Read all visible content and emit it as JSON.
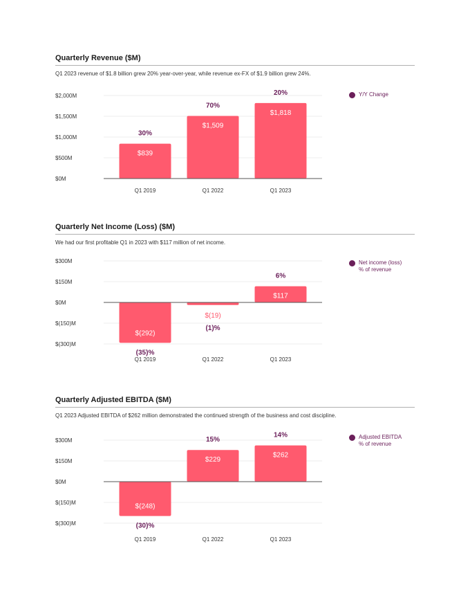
{
  "colors": {
    "bar": "#ff5a6e",
    "pct": "#6b1f5a",
    "grid": "#e6e6e6",
    "zero": "#555555"
  },
  "chart_data": [
    {
      "type": "bar",
      "title": "Quarterly Revenue ($M)",
      "subtitle": "Q1 2023 revenue of $1.8 billion grew 20% year-over-year, while revenue ex-FX of $1.9 billion grew 24%.",
      "categories": [
        "Q1 2019",
        "Q1 2022",
        "Q1 2023"
      ],
      "values": [
        839,
        1509,
        1818
      ],
      "bar_labels": [
        "$839",
        "$1,509",
        "$1,818"
      ],
      "pct_labels": [
        "30%",
        "70%",
        "20%"
      ],
      "yticks": [
        0,
        500,
        1000,
        1500,
        2000
      ],
      "ytick_labels": [
        "$0M",
        "$500M",
        "$1,000M",
        "$1,500M",
        "$2,000M"
      ],
      "ylim": [
        0,
        2000
      ],
      "legend": "Y/Y Change",
      "legend_position": "top-right"
    },
    {
      "type": "bar",
      "title": "Quarterly Net Income (Loss) ($M)",
      "subtitle": "We had our first profitable Q1 in 2023 with $117 million of net income.",
      "categories": [
        "Q1 2019",
        "Q1 2022",
        "Q1 2023"
      ],
      "values": [
        -292,
        -19,
        117
      ],
      "bar_labels": [
        "$(292)",
        "$(19)",
        "$117"
      ],
      "pct_labels": [
        "(35)%",
        "(1)%",
        "6%"
      ],
      "yticks": [
        -300,
        -150,
        0,
        150,
        300
      ],
      "ytick_labels": [
        "$(300)M",
        "$(150)M",
        "$0M",
        "$150M",
        "$300M"
      ],
      "ylim": [
        -300,
        300
      ],
      "legend": "Net income (loss)\n% of revenue",
      "legend_position": "top-right"
    },
    {
      "type": "bar",
      "title": "Quarterly Adjusted EBITDA ($M)",
      "subtitle": "Q1 2023 Adjusted EBITDA of $262 million demonstrated the continued strength of the business and cost discipline.",
      "categories": [
        "Q1 2019",
        "Q1 2022",
        "Q1 2023"
      ],
      "values": [
        -248,
        229,
        262
      ],
      "bar_labels": [
        "$(248)",
        "$229",
        "$262"
      ],
      "pct_labels": [
        "(30)%",
        "15%",
        "14%"
      ],
      "yticks": [
        -300,
        -150,
        0,
        150,
        300
      ],
      "ytick_labels": [
        "$(300)M",
        "$(150)M",
        "$0M",
        "$150M",
        "$300M"
      ],
      "ylim": [
        -300,
        300
      ],
      "legend": "Adjusted EBITDA\n% of revenue",
      "legend_position": "top-right"
    }
  ]
}
